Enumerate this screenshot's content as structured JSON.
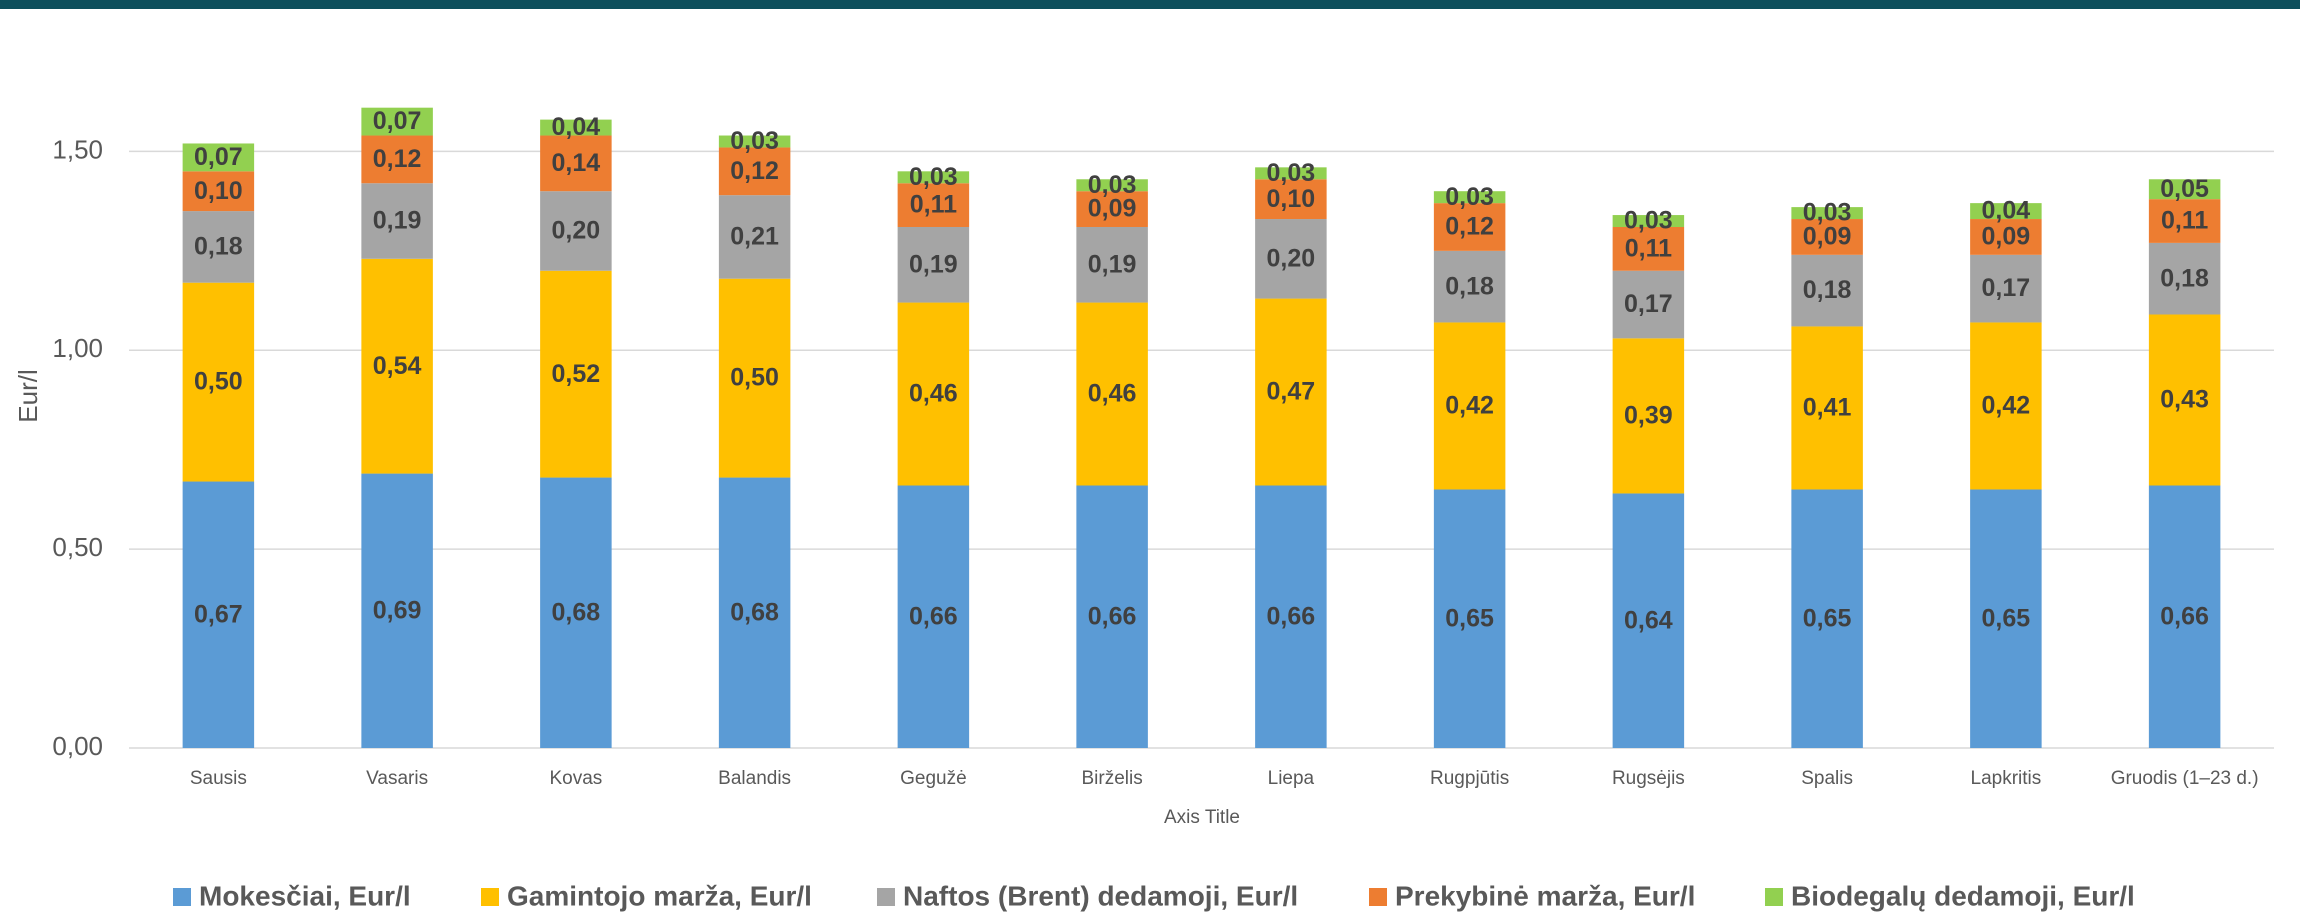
{
  "chart_data": {
    "type": "stacked-bar",
    "xlabel": "Axis Title",
    "ylabel": "Eur/l",
    "categories": [
      "Sausis",
      "Vasaris",
      "Kovas",
      "Balandis",
      "Gegužė",
      "Birželis",
      "Liepa",
      "Rugpjūtis",
      "Rugsėjis",
      "Spalis",
      "Lapkritis",
      "Gruodis (1–23 d.)"
    ],
    "ylim": [
      0,
      1.75
    ],
    "yticks": [
      {
        "value": 0,
        "label": "0,00"
      },
      {
        "value": 0.5,
        "label": "0,50"
      },
      {
        "value": 1,
        "label": "1,00"
      },
      {
        "value": 1.5,
        "label": "1,50"
      }
    ],
    "grid": true,
    "legend": "bottom",
    "series": [
      {
        "name": "Mokesčiai, Eur/l",
        "color": "#5b9bd5",
        "values": [
          0.67,
          0.69,
          0.68,
          0.68,
          0.66,
          0.66,
          0.66,
          0.65,
          0.64,
          0.65,
          0.65,
          0.66
        ],
        "value_labels": [
          "0,67",
          "0,69",
          "0,68",
          "0,68",
          "0,66",
          "0,66",
          "0,66",
          "0,65",
          "0,64",
          "0,65",
          "0,65",
          "0,66"
        ]
      },
      {
        "name": "Gamintojo marža, Eur/l",
        "color": "#ffc000",
        "values": [
          0.5,
          0.54,
          0.52,
          0.5,
          0.46,
          0.46,
          0.47,
          0.42,
          0.39,
          0.41,
          0.42,
          0.43
        ],
        "value_labels": [
          "0,50",
          "0,54",
          "0,52",
          "0,50",
          "0,46",
          "0,46",
          "0,47",
          "0,42",
          "0,39",
          "0,41",
          "0,42",
          "0,43"
        ]
      },
      {
        "name": "Naftos (Brent) dedamoji, Eur/l",
        "color": "#a5a5a5",
        "values": [
          0.18,
          0.19,
          0.2,
          0.21,
          0.19,
          0.19,
          0.2,
          0.18,
          0.17,
          0.18,
          0.17,
          0.18
        ],
        "value_labels": [
          "0,18",
          "0,19",
          "0,20",
          "0,21",
          "0,19",
          "0,19",
          "0,20",
          "0,18",
          "0,17",
          "0,18",
          "0,17",
          "0,18"
        ]
      },
      {
        "name": "Prekybinė marža, Eur/l",
        "color": "#ed7d31",
        "values": [
          0.1,
          0.12,
          0.14,
          0.12,
          0.11,
          0.09,
          0.1,
          0.12,
          0.11,
          0.09,
          0.09,
          0.11
        ],
        "value_labels": [
          "0,10",
          "0,12",
          "0,14",
          "0,12",
          "0,11",
          "0,09",
          "0,10",
          "0,12",
          "0,11",
          "0,09",
          "0,09",
          "0,11"
        ]
      },
      {
        "name": "Biodegalų dedamoji, Eur/l",
        "color": "#92d050",
        "values": [
          0.07,
          0.07,
          0.04,
          0.03,
          0.03,
          0.03,
          0.03,
          0.03,
          0.03,
          0.03,
          0.04,
          0.05
        ],
        "value_labels": [
          "0,07",
          "0,07",
          "0,04",
          "0,03",
          "0,03",
          "0,03",
          "0,03",
          "0,03",
          "0,03",
          "0,03",
          "0,04",
          "0,05"
        ]
      }
    ]
  }
}
